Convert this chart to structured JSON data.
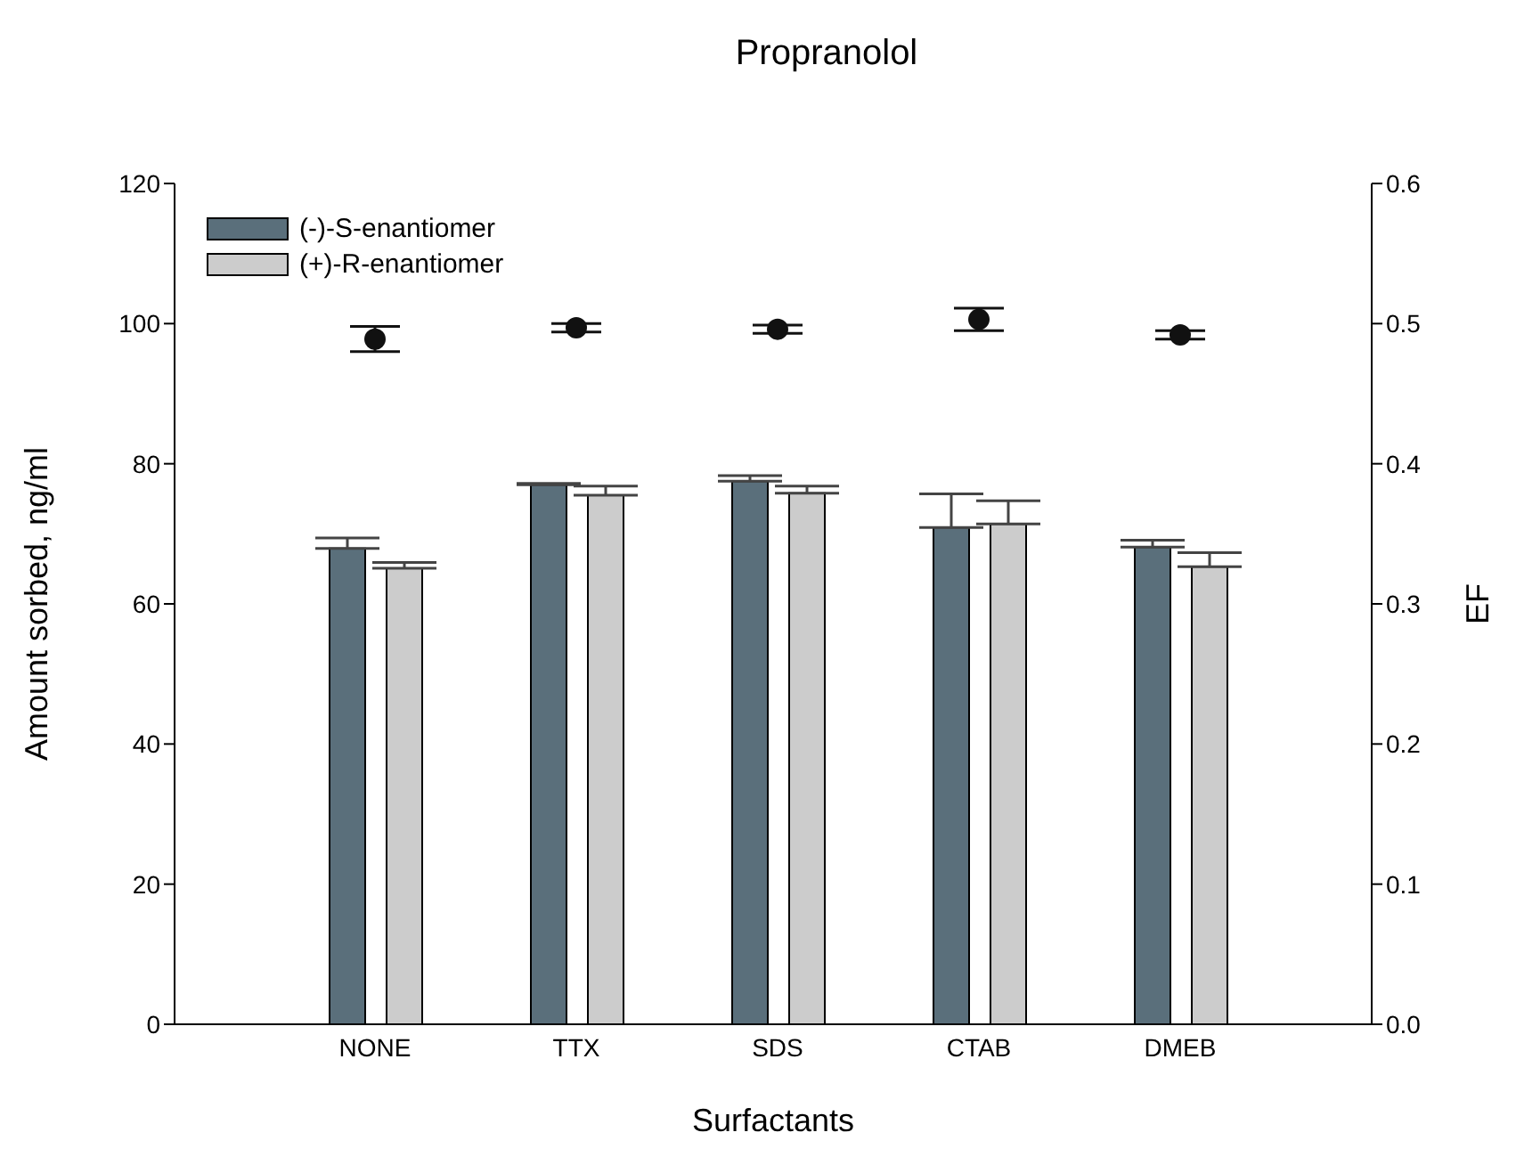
{
  "chart_data": {
    "type": "bar",
    "title": "Propranolol",
    "xlabel": "Surfactants",
    "ylabel": "Amount sorbed, ng/ml",
    "y2label": "EF",
    "categories": [
      "NONE",
      "TTX",
      "SDS",
      "CTAB",
      "DMEB"
    ],
    "series": [
      {
        "name": "(-)-S-enantiomer",
        "color": "#5a6f7b",
        "values": [
          67.9,
          77.0,
          77.5,
          70.9,
          68.1
        ],
        "errors": [
          1.5,
          0.2,
          0.8,
          4.8,
          1.0
        ]
      },
      {
        "name": "(+)-R-enantiomer",
        "color": "#cccccc",
        "values": [
          65.1,
          75.5,
          75.8,
          71.4,
          65.3
        ],
        "errors": [
          0.8,
          1.3,
          1.0,
          3.3,
          2.0
        ]
      },
      {
        "type": "scatter",
        "axis": "y2",
        "color": "#111111",
        "marker": "circle",
        "values": [
          0.489,
          0.497,
          0.496,
          0.503,
          0.492
        ],
        "errors": [
          0.009,
          0.003,
          0.003,
          0.008,
          0.003
        ]
      }
    ],
    "ylim": [
      0,
      120
    ],
    "yticks": [
      0,
      20,
      40,
      60,
      80,
      100,
      120
    ],
    "y2lim": [
      0,
      0.6
    ],
    "y2ticks": [
      {
        "value": 0,
        "label": "0.0"
      },
      0.1,
      0.2,
      0.3,
      0.4,
      0.5,
      0.6
    ],
    "grid": false,
    "legend": "top left"
  }
}
